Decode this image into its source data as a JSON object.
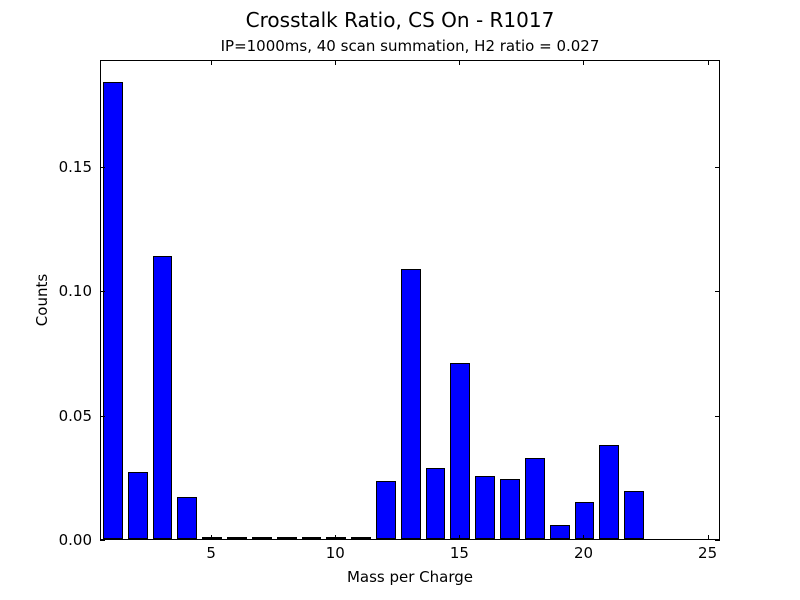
{
  "chart_data": {
    "type": "bar",
    "title": "Crosstalk Ratio, CS On - R1017",
    "subtitle": "IP=1000ms, 40 scan summation, H2 ratio = 0.027",
    "xlabel": "Mass per Charge",
    "ylabel": "Counts",
    "x": [
      1,
      2,
      3,
      4,
      5,
      6,
      7,
      8,
      9,
      10,
      11,
      12,
      13,
      14,
      15,
      16,
      17,
      18,
      19,
      20,
      21,
      22
    ],
    "values": [
      0.1836,
      0.0269,
      0.1137,
      0.0169,
      0.0003,
      0.0002,
      0.0002,
      0.0002,
      0.0,
      0.0,
      0.0,
      0.0233,
      0.1085,
      0.0285,
      0.0707,
      0.0253,
      0.0241,
      0.0325,
      0.0056,
      0.0149,
      0.0378,
      0.0193
    ],
    "bar_width": 0.8,
    "bar_color": "#0000ff",
    "xlim": [
      0.52,
      25.5
    ],
    "ylim": [
      0,
      0.193
    ],
    "xticks": [
      5,
      10,
      15,
      20,
      25
    ],
    "xtick_labels": [
      "5",
      "10",
      "15",
      "20",
      "25"
    ],
    "yticks": [
      0.0,
      0.05,
      0.1,
      0.15
    ],
    "ytick_labels": [
      "0.00",
      "0.05",
      "0.10",
      "0.15"
    ],
    "grid": false,
    "legend": null
  }
}
